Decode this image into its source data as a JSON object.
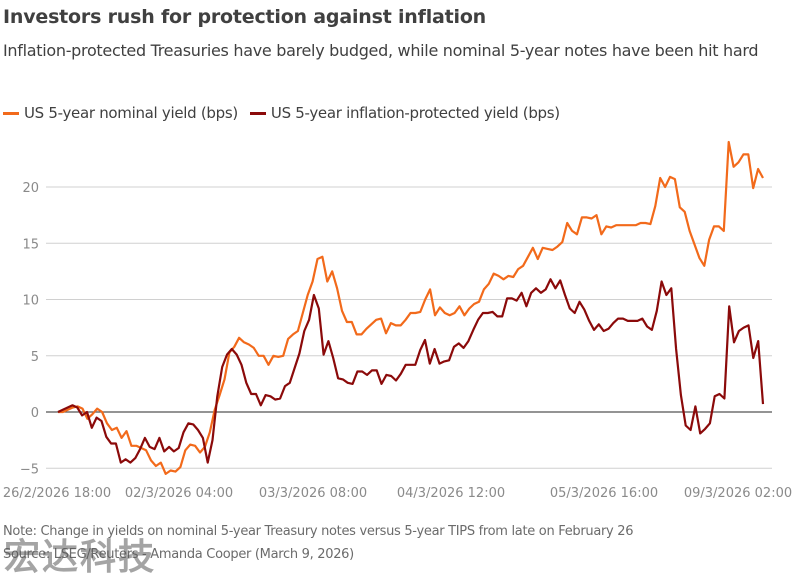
{
  "header": {
    "title": "Investors rush for protection against inflation",
    "subtitle": "Inflation-protected Treasuries have barely budged, while nominal 5-year notes have been hit hard"
  },
  "footer": {
    "note": "Note: Change in yields on nominal 5-year Treasury notes versus 5-year TIPS from late on February 26",
    "source": "Source: LSEG/Reuters - Amanda Cooper (March 9, 2026)",
    "watermark": "宏达科技"
  },
  "chart_data": {
    "type": "line",
    "title": "Investors rush for protection against inflation",
    "subtitle": "Inflation-protected Treasuries have barely budged, while nominal 5-year notes have been hit hard",
    "xlabel": "",
    "ylabel": "",
    "ylim": [
      -5.5,
      24.5
    ],
    "yticks": [
      -5,
      0,
      5,
      10,
      15,
      20
    ],
    "ytick_labels": [
      "−5",
      "0",
      "5",
      "10",
      "15",
      "20"
    ],
    "xtick_labels": [
      "26/2/2026 18:00",
      "02/3/2026 04:00",
      "03/3/2026 08:00",
      "04/3/2026 12:00",
      "05/3/2026 16:00",
      "09/3/2026 02:00"
    ],
    "xtick_positions": [
      0,
      0.2,
      0.4,
      0.6,
      0.8,
      1.0
    ],
    "grid": true,
    "legend_position": "top-left",
    "series": [
      {
        "name": "US 5-year nominal yield (bps)",
        "color": "#f26a1b",
        "values": [
          0,
          0,
          0.2,
          0.4,
          0.5,
          0.3,
          -0.6,
          -0.2,
          0.3,
          0,
          -1,
          -1.6,
          -1.4,
          -2.3,
          -1.7,
          -3,
          -3,
          -3.2,
          -3.4,
          -4.3,
          -4.8,
          -4.5,
          -5.5,
          -5.2,
          -5.3,
          -4.9,
          -3.4,
          -2.9,
          -3,
          -3.6,
          -3.1,
          -1.8,
          0.2,
          1.5,
          2.9,
          5.3,
          5.8,
          6.6,
          6.2,
          6,
          5.7,
          5,
          5,
          4.2,
          5,
          4.9,
          5,
          6.5,
          6.9,
          7.2,
          8.8,
          10.4,
          11.6,
          13.6,
          13.8,
          11.6,
          12.5,
          11,
          9,
          8,
          8,
          6.9,
          6.9,
          7.4,
          7.8,
          8.2,
          8.3,
          7,
          7.9,
          7.7,
          7.7,
          8.2,
          8.8,
          8.8,
          8.9,
          10,
          10.9,
          8.6,
          9.3,
          8.8,
          8.6,
          8.8,
          9.4,
          8.6,
          9.2,
          9.6,
          9.8,
          10.9,
          11.4,
          12.3,
          12.1,
          11.8,
          12.1,
          12,
          12.7,
          13,
          13.8,
          14.6,
          13.6,
          14.6,
          14.5,
          14.4,
          14.7,
          15.1,
          16.8,
          16.1,
          15.8,
          17.3,
          17.3,
          17.2,
          17.5,
          15.8,
          16.5,
          16.4,
          16.6,
          16.6,
          16.6,
          16.6,
          16.6,
          16.8,
          16.8,
          16.7,
          18.3,
          20.8,
          20,
          20.9,
          20.7,
          18.2,
          17.8,
          16.1,
          14.9,
          13.7,
          13,
          15.3,
          16.5,
          16.5,
          16.1,
          24,
          21.8,
          22.2,
          22.9,
          22.9,
          19.9,
          21.6,
          20.8
        ]
      },
      {
        "name": "US 5-year inflation-protected yield (bps)",
        "color": "#8b0a0a",
        "values": [
          0,
          0.2,
          0.4,
          0.6,
          0.4,
          -0.3,
          0,
          -1.4,
          -0.5,
          -0.8,
          -2.2,
          -2.8,
          -2.8,
          -4.5,
          -4.2,
          -4.5,
          -4.1,
          -3.3,
          -2.3,
          -3.1,
          -3.3,
          -2.3,
          -3.5,
          -3.1,
          -3.5,
          -3.2,
          -1.8,
          -1,
          -1.1,
          -1.6,
          -2.3,
          -4.5,
          -2.5,
          1.4,
          4,
          5.1,
          5.6,
          5.1,
          4.2,
          2.6,
          1.6,
          1.6,
          0.6,
          1.5,
          1.4,
          1.1,
          1.2,
          2.3,
          2.6,
          3.9,
          5.2,
          7.2,
          8.2,
          10.4,
          9.2,
          5.1,
          6.3,
          4.8,
          3,
          2.9,
          2.6,
          2.5,
          3.6,
          3.6,
          3.3,
          3.7,
          3.7,
          2.5,
          3.3,
          3.2,
          2.8,
          3.4,
          4.2,
          4.2,
          4.2,
          5.5,
          6.4,
          4.3,
          5.6,
          4.3,
          4.5,
          4.6,
          5.8,
          6.1,
          5.7,
          6.3,
          7.3,
          8.2,
          8.8,
          8.8,
          8.9,
          8.5,
          8.5,
          10.1,
          10.1,
          9.9,
          10.6,
          9.4,
          10.6,
          11,
          10.6,
          10.9,
          11.8,
          11,
          11.7,
          10.4,
          9.2,
          8.8,
          9.8,
          9.1,
          8.1,
          7.3,
          7.8,
          7.2,
          7.4,
          7.9,
          8.3,
          8.3,
          8.1,
          8.1,
          8.1,
          8.3,
          7.6,
          7.3,
          9,
          11.6,
          10.4,
          11,
          5.6,
          1.5,
          -1.2,
          -1.6,
          0.5,
          -1.9,
          -1.5,
          -1,
          1.4,
          1.6,
          1.2,
          9.4,
          6.2,
          7.2,
          7.5,
          7.7,
          4.8,
          6.3,
          0.7
        ]
      }
    ]
  }
}
